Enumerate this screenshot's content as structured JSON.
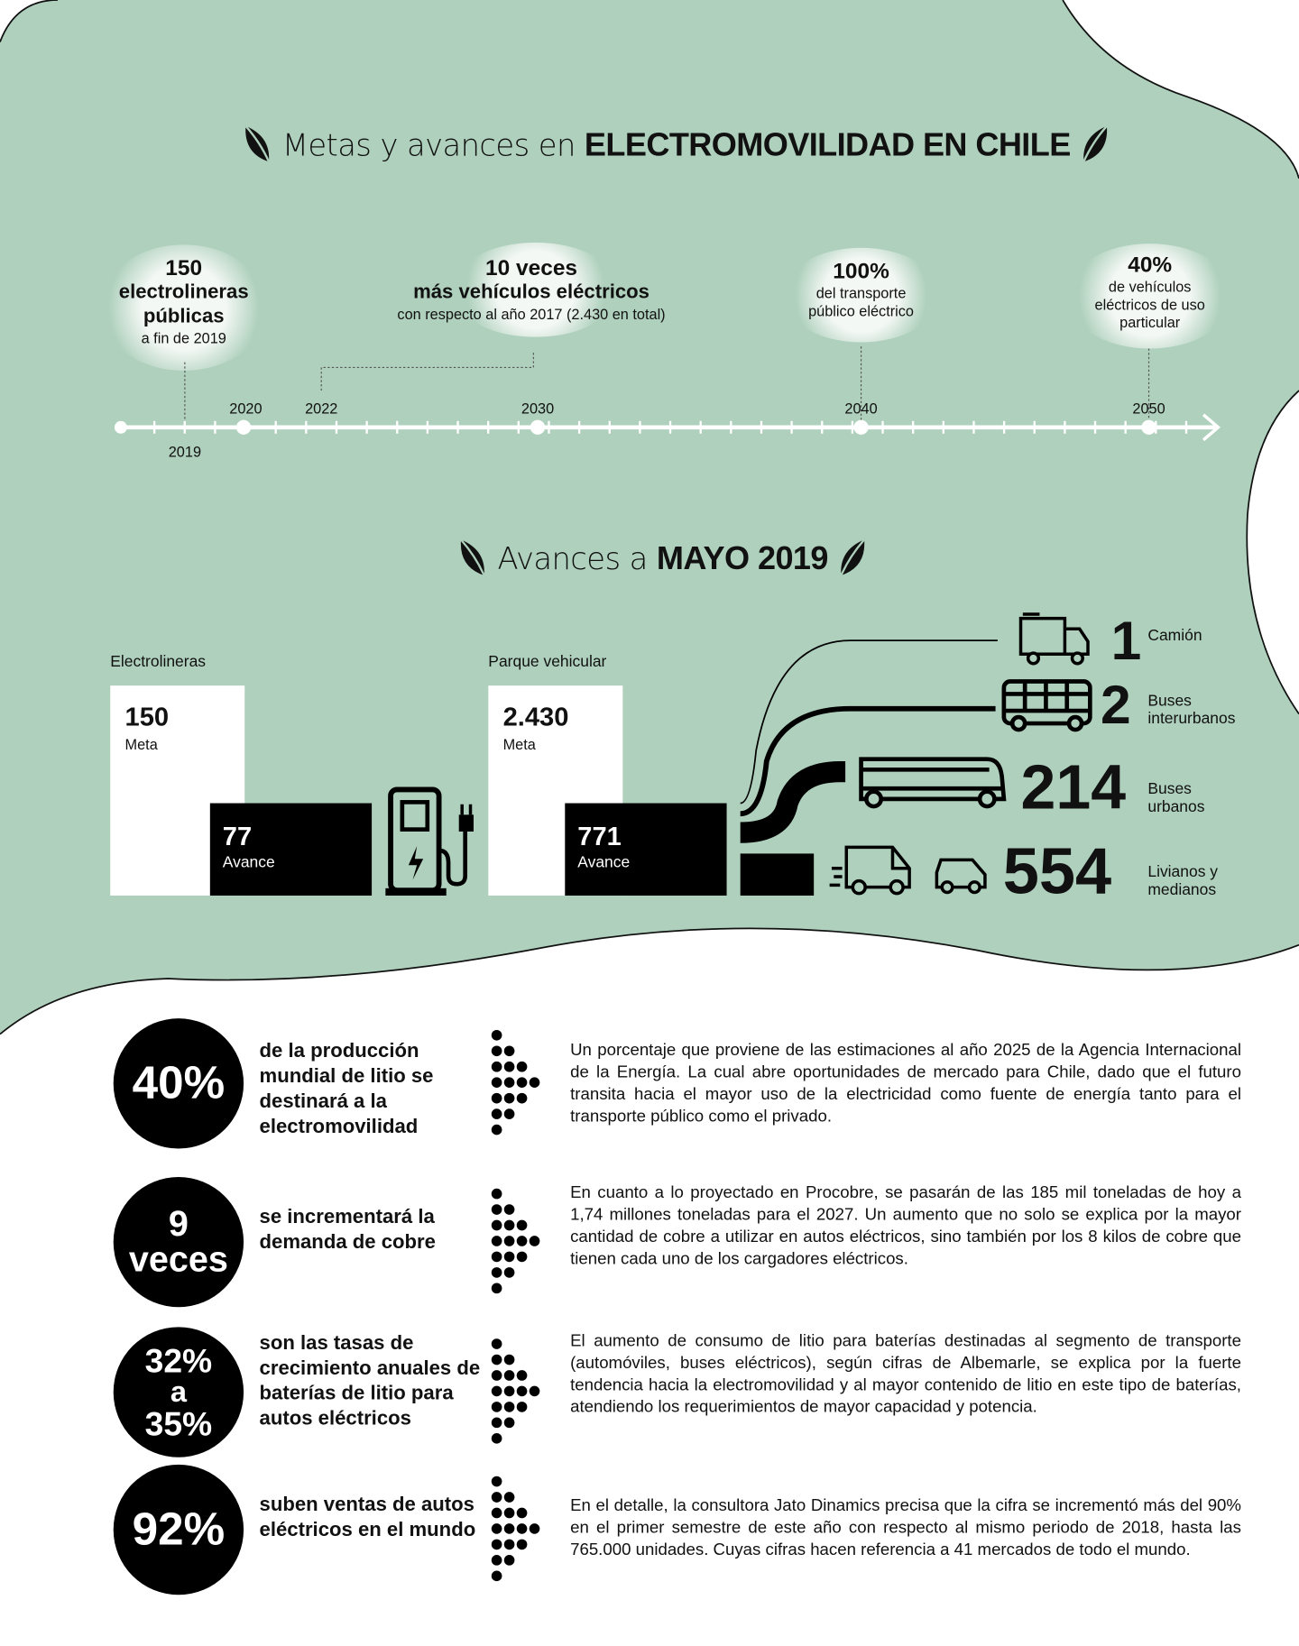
{
  "colors": {
    "green": "#aed0bc",
    "black": "#000000",
    "cloud": "#f4f8f5"
  },
  "header": {
    "title_light": "Metas y avances en",
    "title_bold": "ELECTROMOVILIDAD EN CHILE",
    "icon": "leaf-icon"
  },
  "timeline": {
    "years": [
      "2019",
      "2020",
      "2022",
      "2030",
      "2040",
      "2050"
    ],
    "milestones": [
      {
        "value": "150",
        "line1": "electrolineras",
        "line2": "públicas",
        "note": "a fin de 2019"
      },
      {
        "value": "10 veces",
        "line1": "más vehículos eléctricos",
        "note": "con respecto al año 2017 (2.430 en total)"
      },
      {
        "value": "100%",
        "line1": "del transporte",
        "line2": "público eléctrico"
      },
      {
        "value": "40%",
        "line1": "de vehículos",
        "line2": "eléctricos de uso",
        "line3": "particular"
      }
    ]
  },
  "progress": {
    "title_light": "Avances a",
    "title_bold": "MAYO 2019",
    "electrolineras": {
      "label": "Electrolineras",
      "goal": "150",
      "goal_label": "Meta",
      "current": "77",
      "current_label": "Avance",
      "icon": "charging-station-icon"
    },
    "parque": {
      "label": "Parque vehicular",
      "goal": "2.430",
      "goal_label": "Meta",
      "current": "771",
      "current_label": "Avance"
    },
    "vehicles": [
      {
        "count": "1",
        "label": "Camión",
        "icon": "truck-icon"
      },
      {
        "count": "2",
        "label": "Buses interurbanos",
        "icon": "bus-icon"
      },
      {
        "count": "214",
        "label": "Buses urbanos",
        "icon": "coach-icon"
      },
      {
        "count": "554",
        "label": "Livianos y medianos",
        "icon": "van-icon"
      }
    ]
  },
  "stats": [
    {
      "figure": [
        "40%"
      ],
      "headline": "de la producción mundial  de litio se destinará a la electromovilidad",
      "text": "Un porcentaje que proviene de las estimaciones al año 2025 de la Agencia Internacional de la Energía. La cual abre oportunidades de mercado para Chile, dado que el futuro transita hacia el mayor uso de la electricidad como fuente de energía tanto para el transporte público como el privado."
    },
    {
      "figure": [
        "9",
        "veces"
      ],
      "headline": "se incrementará la demanda de cobre",
      "text": "En cuanto a lo proyectado en Procobre, se pasarán de las 185 mil toneladas de hoy a 1,74 millones toneladas para el 2027. Un aumento que no solo se explica por la mayor cantidad de cobre a utilizar en autos eléctricos, sino también por los 8 kilos de cobre que tienen cada uno de los cargadores eléctricos."
    },
    {
      "figure": [
        "32%",
        "a",
        "35%"
      ],
      "headline": "son las tasas de crecimiento anuales de baterías de litio para autos eléctricos",
      "text": "El aumento de consumo de litio para baterías destinadas al segmento de transporte (automóviles, buses eléctricos), según cifras de Albemarle, se explica por la fuerte tendencia hacia la electromovilidad y al mayor contenido de litio en este tipo de baterías, atendiendo los requerimientos de mayor capacidad y potencia."
    },
    {
      "figure": [
        "92%"
      ],
      "headline": "suben ventas de autos eléctricos en el mundo",
      "text": "En el detalle, la consultora Jato Dinamics precisa que la cifra se incrementó más del 90% en el primer semestre de este año con respecto al mismo periodo de 2018, hasta las 765.000 unidades. Cuyas cifras hacen referencia a 41 mercados de todo el mundo."
    }
  ]
}
